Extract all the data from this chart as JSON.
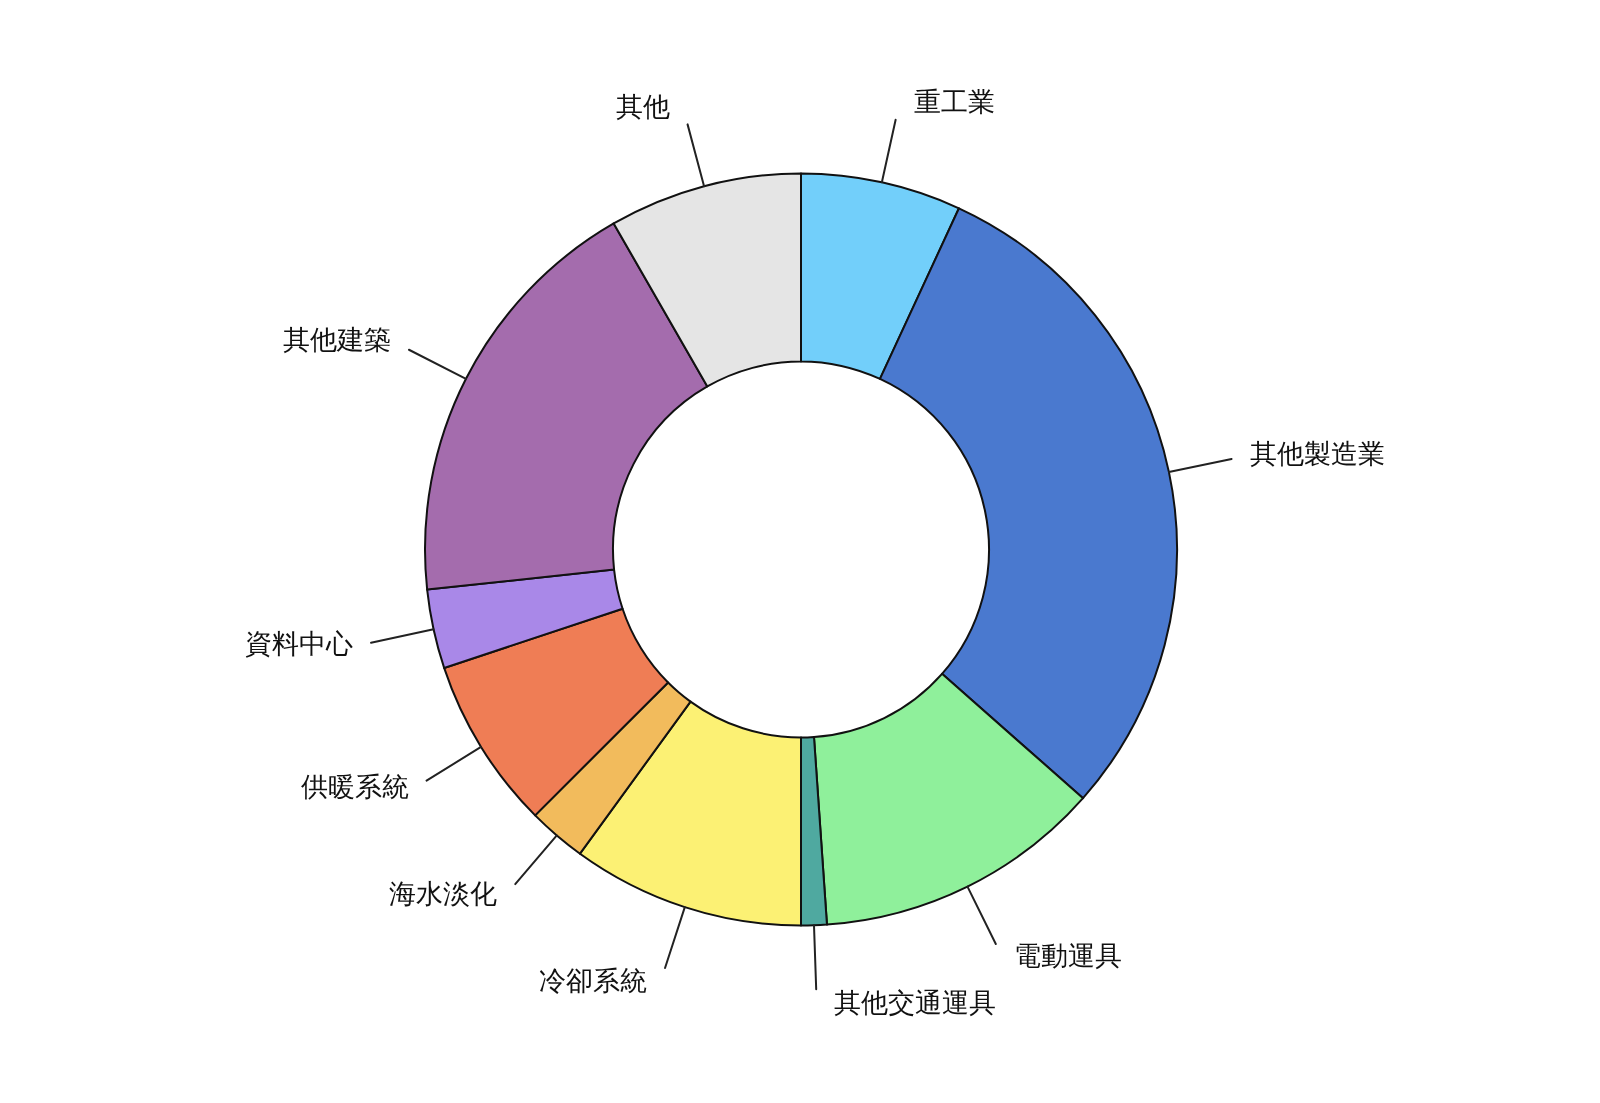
{
  "chart_data": {
    "type": "donut",
    "categories": [
      "重工業",
      "其他製造業",
      "電動運具",
      "其他交通運具",
      "冷卻系統",
      "海水淡化",
      "供暖系統",
      "資料中心",
      "其他建築",
      "其他"
    ],
    "values": [
      6.9,
      29.6,
      12.4,
      1.1,
      10.0,
      2.5,
      7.4,
      3.4,
      18.4,
      8.3
    ],
    "colors": [
      "#72cffa",
      "#4a79cf",
      "#8ff09b",
      "#4fa9a0",
      "#fcf174",
      "#f2bb5c",
      "#ef7d55",
      "#a988e8",
      "#a46cad",
      "#e5e5e5"
    ]
  }
}
